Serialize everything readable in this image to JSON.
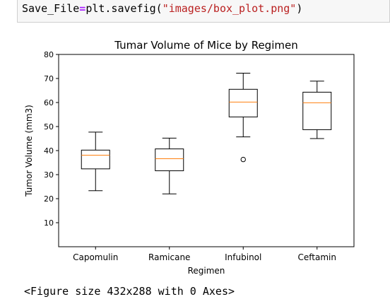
{
  "code_cell": {
    "line": [
      {
        "text": "Save_File",
        "cls": ""
      },
      {
        "text": "=",
        "cls": "tok-op"
      },
      {
        "text": "plt.savefig(",
        "cls": ""
      },
      {
        "text": "\"images/box_plot.png\"",
        "cls": "tok-str"
      },
      {
        "text": ")",
        "cls": ""
      }
    ]
  },
  "output": {
    "figure_text": "<Figure size 432x288 with 0 Axes>"
  },
  "colors": {
    "median": "#ff7f0e",
    "box": "#000000",
    "code_background": "#f7f7f7"
  },
  "chart_data": {
    "type": "box",
    "title": "Tumar Volume of Mice by Regimen",
    "xlabel": "Regimen",
    "ylabel": "Tumor Volume (mm3)",
    "ylim": [
      0,
      80
    ],
    "yticks": [
      10,
      20,
      30,
      40,
      50,
      60,
      70,
      80
    ],
    "grid": false,
    "categories": [
      "Capomulin",
      "Ramicane",
      "Infubinol",
      "Ceftamin"
    ],
    "boxes": [
      {
        "whisker_low": 23.3,
        "q1": 32.4,
        "median": 38.1,
        "q3": 40.2,
        "whisker_high": 47.7,
        "outliers": []
      },
      {
        "whisker_low": 22.0,
        "q1": 31.6,
        "median": 36.6,
        "q3": 40.7,
        "whisker_high": 45.2,
        "outliers": []
      },
      {
        "whisker_low": 45.7,
        "q1": 54.0,
        "median": 60.2,
        "q3": 65.5,
        "whisker_high": 72.2,
        "outliers": [
          36.3
        ]
      },
      {
        "whisker_low": 45.0,
        "q1": 48.7,
        "median": 59.9,
        "q3": 64.3,
        "whisker_high": 68.9,
        "outliers": []
      }
    ]
  }
}
